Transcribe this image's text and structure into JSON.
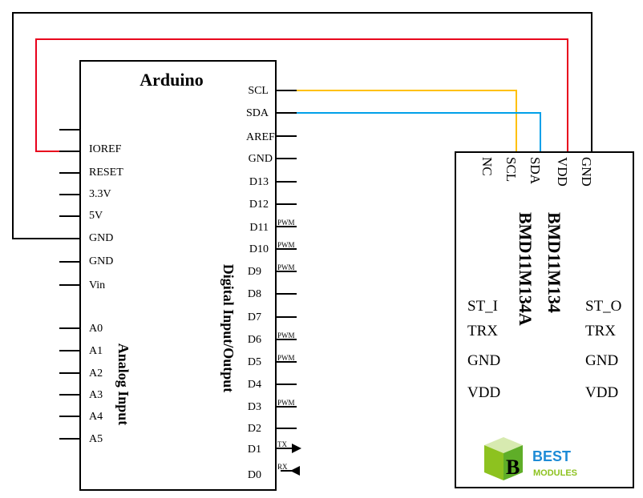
{
  "arduino": {
    "title": "Arduino",
    "left_pins": [
      "IOREF",
      "RESET",
      "3.3V",
      "5V",
      "GND",
      "GND",
      "Vin"
    ],
    "analog_pins": [
      "A0",
      "A1",
      "A2",
      "A3",
      "A4",
      "A5"
    ],
    "analog_label": "Analog Input",
    "right_pins": [
      "SCL",
      "SDA",
      "AREF",
      "GND",
      "D13",
      "D12",
      "D11",
      "D10",
      "D9",
      "D8",
      "D7",
      "D6",
      "D5",
      "D4",
      "D3",
      "D2",
      "D1",
      "D0"
    ],
    "pwm_label": "PWM",
    "tx_label": "TX",
    "rx_label": "RX",
    "digital_label": "Digital Input/Output"
  },
  "module": {
    "top_pins": [
      "NC",
      "SCL",
      "SDA",
      "VDD",
      "GND"
    ],
    "name1": "BMD11M134",
    "name2": "BMD11M134A",
    "left_pins": [
      "ST_I",
      "TRX",
      "GND",
      "VDD"
    ],
    "right_pins": [
      "ST_O",
      "TRX",
      "GND",
      "VDD"
    ]
  },
  "logo": {
    "line1": "BEST",
    "line2": "MODULES"
  },
  "wires": [
    {
      "from": "GND",
      "to": "GND",
      "color": "#000000"
    },
    {
      "from": "IOREF",
      "to": "VDD",
      "color": "#e8001c"
    },
    {
      "from": "SCL",
      "to": "SCL",
      "color": "#ffc000"
    },
    {
      "from": "SDA",
      "to": "SDA",
      "color": "#00a0e9"
    }
  ],
  "colors": {
    "logo_green": "#8dc21f",
    "logo_blue": "#1d8bd6"
  }
}
